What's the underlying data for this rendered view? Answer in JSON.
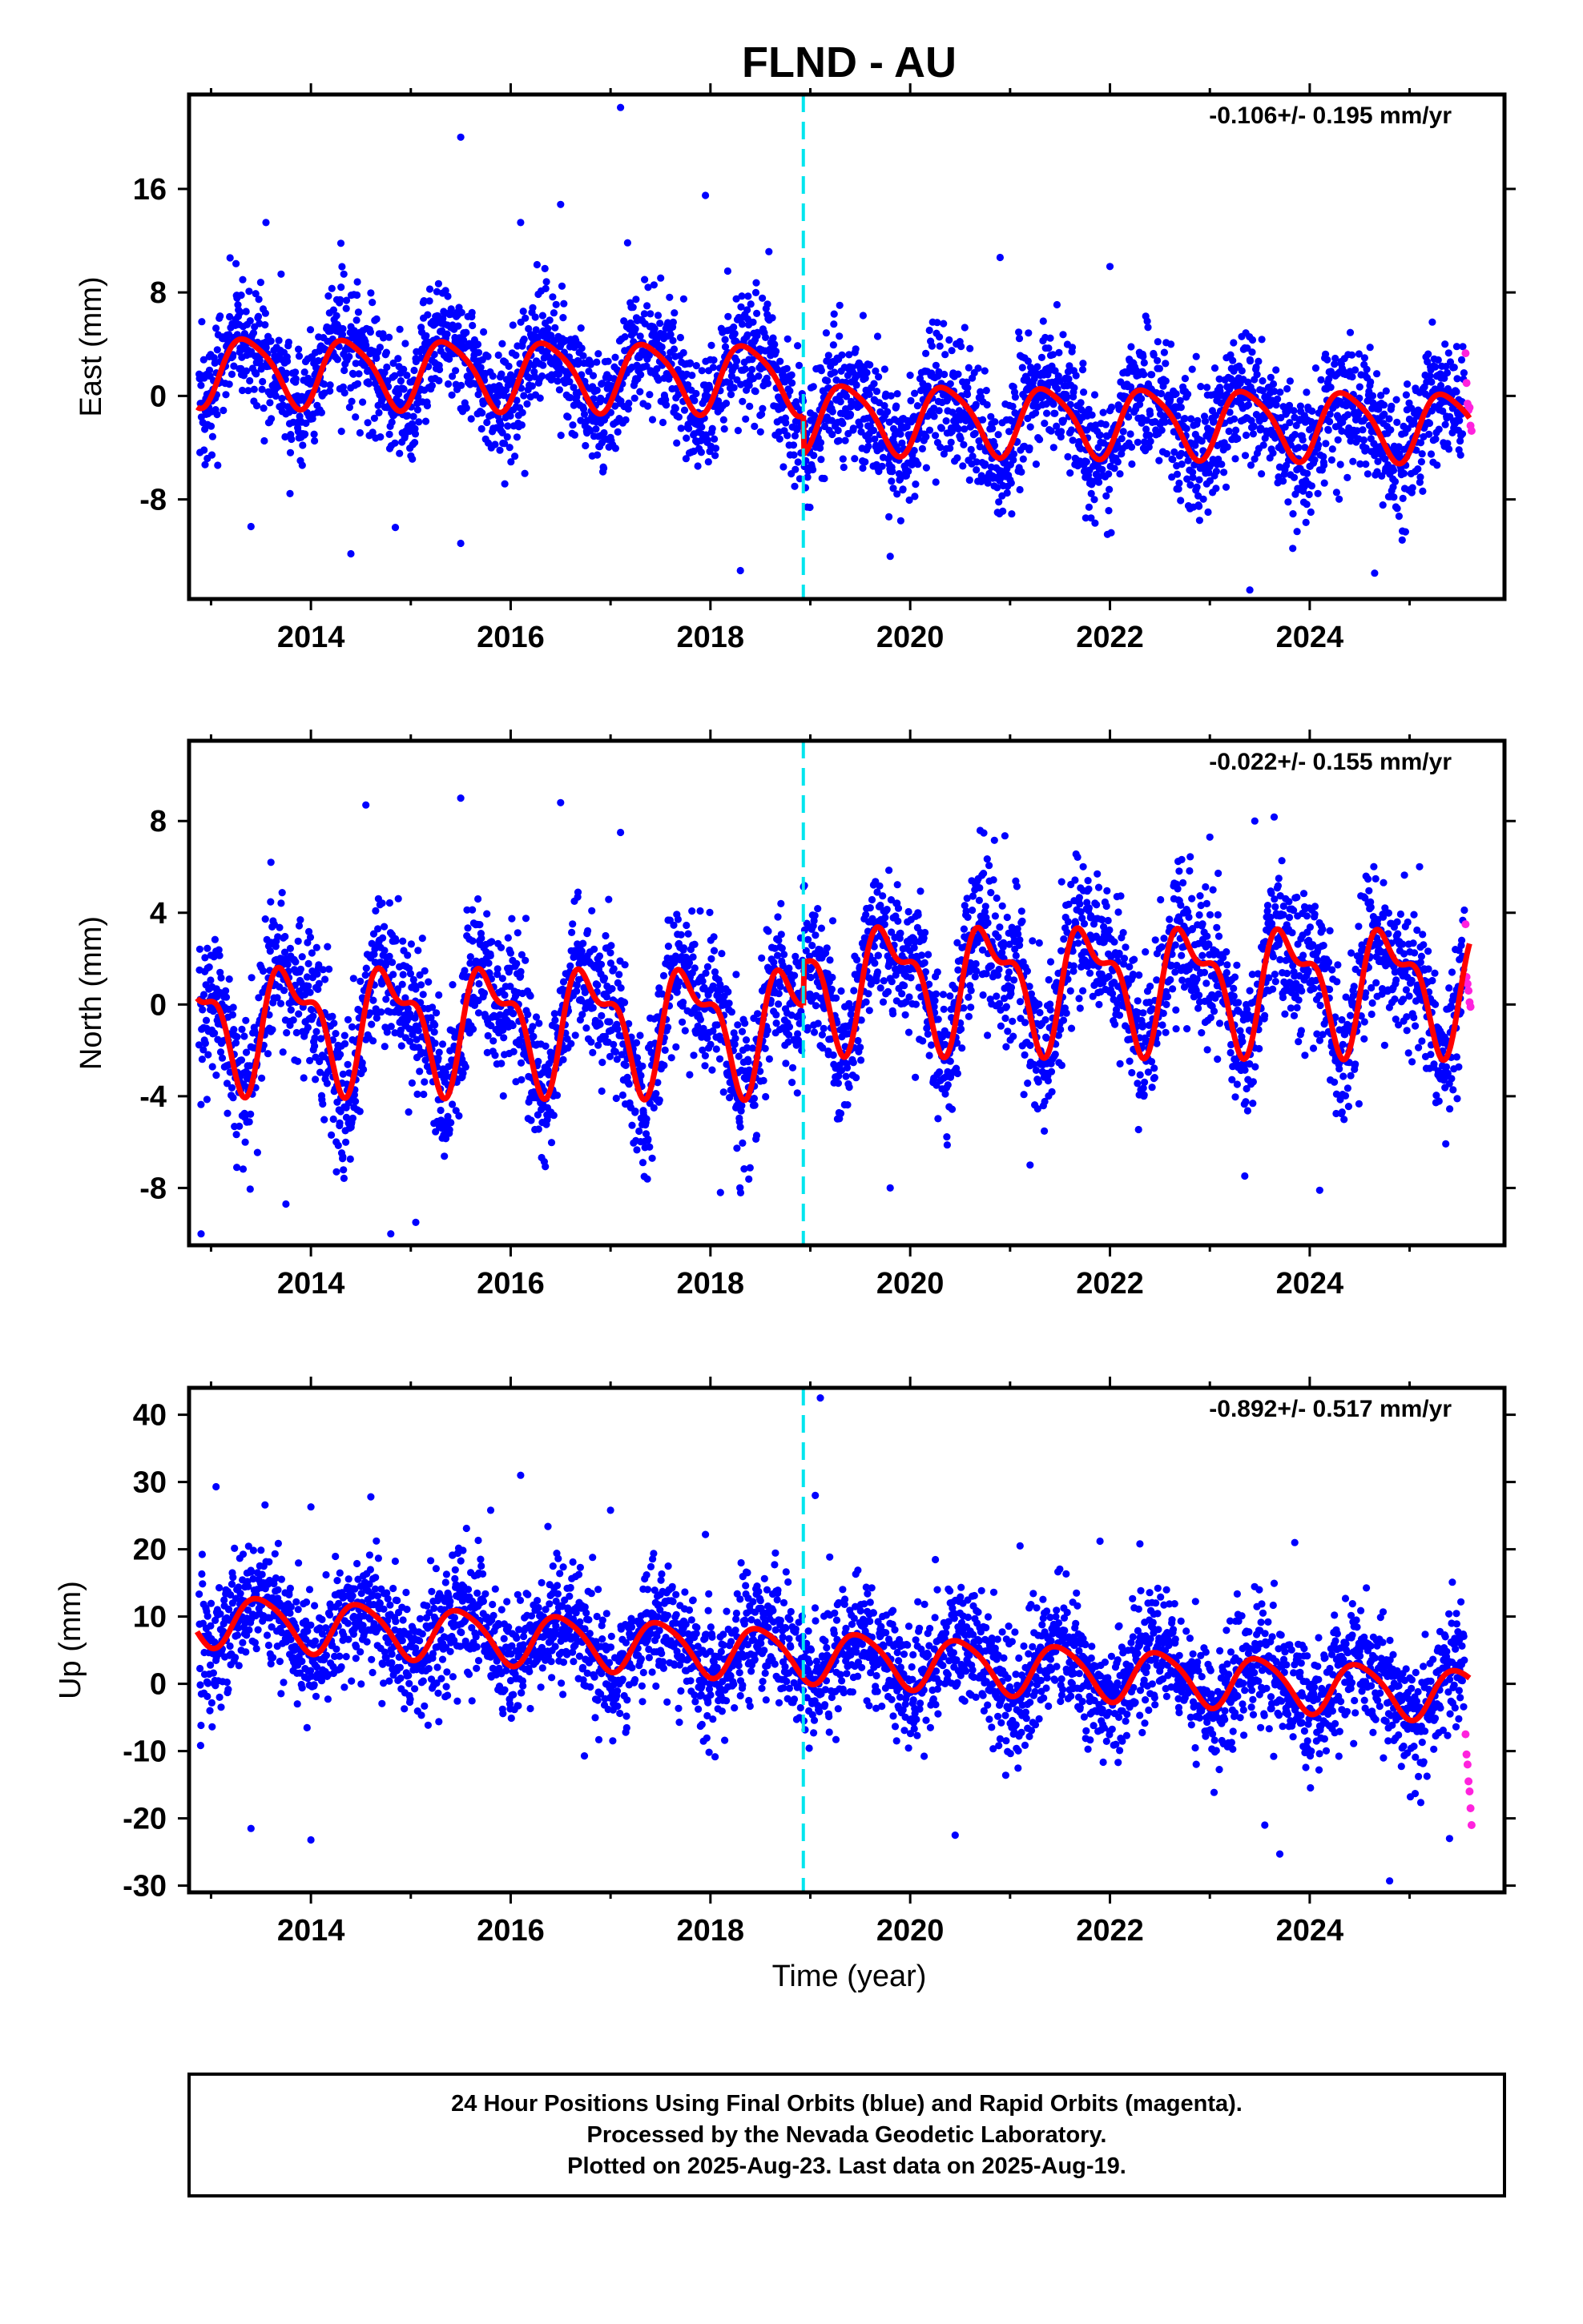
{
  "chart_data": {
    "type": "scatter",
    "title": "FLND - AU",
    "xlabel": "Time (year)",
    "xlim": [
      2012.78,
      2025.95
    ],
    "xticks": [
      2014,
      2016,
      2018,
      2020,
      2022,
      2024
    ],
    "xtick_labels": [
      "2014",
      "2016",
      "2018",
      "2020",
      "2022",
      "2024"
    ],
    "equipment_change_year": 2018.93,
    "colors": {
      "final_orbits": "#0000ff",
      "rapid_orbits": "#ff22dd",
      "model_fit": "#ff0000",
      "equipment_change": "#00e5ee"
    },
    "panels": [
      {
        "component": "East",
        "ylabel": "East (mm)",
        "ylim": [
          -15.7,
          23.3
        ],
        "yticks": [
          16,
          8,
          0,
          -8
        ],
        "ytick_labels": [
          "16",
          "8",
          "0",
          "-8"
        ],
        "rate_text": "-0.106+/- 0.195 mm/yr",
        "model": {
          "segments": [
            {
              "from": 2012.78,
              "to": 2018.93,
              "offset": 1.4,
              "trend": -0.106,
              "annual_amp": 2.6,
              "annual_phase": 0.12,
              "semiannual_amp": 0.5
            },
            {
              "from": 2018.93,
              "to": 2025.95,
              "offset": -1.6,
              "trend": -0.106,
              "annual_amp": 2.6,
              "annual_phase": 0.12,
              "semiannual_amp": 0.5
            }
          ]
        },
        "scatter_sigma": 2.4,
        "outliers": [
          {
            "x": 2017.1,
            "y": 22.3
          },
          {
            "x": 2015.5,
            "y": 20.0
          },
          {
            "x": 2017.95,
            "y": 15.5
          },
          {
            "x": 2016.5,
            "y": 14.8
          },
          {
            "x": 2013.55,
            "y": 13.4
          },
          {
            "x": 2016.1,
            "y": 13.4
          },
          {
            "x": 2014.3,
            "y": 11.8
          },
          {
            "x": 2020.9,
            "y": 10.7
          },
          {
            "x": 2022.0,
            "y": 10.0
          },
          {
            "x": 2023.4,
            "y": -15.0
          },
          {
            "x": 2018.3,
            "y": -13.5
          },
          {
            "x": 2024.65,
            "y": -13.7
          },
          {
            "x": 2014.4,
            "y": -12.2
          },
          {
            "x": 2019.8,
            "y": -12.4
          },
          {
            "x": 2013.4,
            "y": -10.1
          },
          {
            "x": 2015.5,
            "y": -11.4
          }
        ],
        "rapid_points": [
          {
            "x": 2025.56,
            "y": 3.3
          },
          {
            "x": 2025.57,
            "y": 1.0
          },
          {
            "x": 2025.58,
            "y": -0.6
          },
          {
            "x": 2025.59,
            "y": -1.1
          },
          {
            "x": 2025.6,
            "y": -0.9
          },
          {
            "x": 2025.61,
            "y": -2.3
          },
          {
            "x": 2025.62,
            "y": -2.7
          }
        ]
      },
      {
        "component": "North",
        "ylabel": "North (mm)",
        "ylim": [
          -10.5,
          11.5
        ],
        "yticks": [
          8,
          4,
          0,
          -4,
          -8
        ],
        "ytick_labels": [
          "8",
          "4",
          "0",
          "-4",
          "-8"
        ],
        "rate_text": "-0.022+/- 0.155 mm/yr",
        "model": {
          "segments": [
            {
              "from": 2012.78,
              "to": 2018.93,
              "offset": -0.9,
              "trend": -0.022,
              "annual_amp": 2.3,
              "annual_phase": 0.55,
              "semiannual_amp": 1.1
            },
            {
              "from": 2018.93,
              "to": 2025.95,
              "offset": 1.0,
              "trend": -0.022,
              "annual_amp": 2.3,
              "annual_phase": 0.55,
              "semiannual_amp": 1.1
            }
          ]
        },
        "scatter_sigma": 1.6,
        "outliers": [
          {
            "x": 2015.5,
            "y": 9.0
          },
          {
            "x": 2014.55,
            "y": 8.7
          },
          {
            "x": 2016.5,
            "y": 8.8
          },
          {
            "x": 2017.1,
            "y": 7.5
          },
          {
            "x": 2023.45,
            "y": 8.0
          },
          {
            "x": 2013.6,
            "y": 6.2
          },
          {
            "x": 2012.9,
            "y": -10.0
          },
          {
            "x": 2014.8,
            "y": -10.0
          },
          {
            "x": 2015.05,
            "y": -9.5
          },
          {
            "x": 2013.75,
            "y": -8.7
          },
          {
            "x": 2024.1,
            "y": -8.1
          },
          {
            "x": 2019.8,
            "y": -8.0
          },
          {
            "x": 2018.1,
            "y": -8.2
          },
          {
            "x": 2021.2,
            "y": -7.0
          },
          {
            "x": 2023.0,
            "y": 7.3
          }
        ],
        "rapid_points": [
          {
            "x": 2025.56,
            "y": 3.5
          },
          {
            "x": 2025.57,
            "y": 1.2
          },
          {
            "x": 2025.58,
            "y": 0.9
          },
          {
            "x": 2025.59,
            "y": 0.6
          },
          {
            "x": 2025.6,
            "y": 0.1
          },
          {
            "x": 2025.61,
            "y": -0.1
          }
        ]
      },
      {
        "component": "Up",
        "ylabel": "Up (mm)",
        "ylim": [
          -31,
          44
        ],
        "yticks": [
          40,
          30,
          20,
          10,
          0,
          -10,
          -20,
          -30
        ],
        "ytick_labels": [
          "40",
          "30",
          "20",
          "10",
          "0",
          "-10",
          "-20",
          "-30"
        ],
        "rate_text": "-0.892+/- 0.517 mm/yr",
        "model": {
          "segments": [
            {
              "from": 2012.78,
              "to": 2018.93,
              "offset": 4.2,
              "trend": -0.892,
              "annual_amp": 3.8,
              "annual_phase": 0.25,
              "semiannual_amp": 0.6
            },
            {
              "from": 2018.93,
              "to": 2025.95,
              "offset": 4.2,
              "trend": -0.892,
              "annual_amp": 3.8,
              "annual_phase": 0.25,
              "semiannual_amp": 0.6
            }
          ]
        },
        "scatter_sigma": 4.6,
        "outliers": [
          {
            "x": 2019.1,
            "y": 42.5
          },
          {
            "x": 2016.1,
            "y": 31.0
          },
          {
            "x": 2013.05,
            "y": 29.3
          },
          {
            "x": 2019.05,
            "y": 28.0
          },
          {
            "x": 2014.6,
            "y": 27.8
          },
          {
            "x": 2015.8,
            "y": 25.8
          },
          {
            "x": 2014.0,
            "y": 26.3
          },
          {
            "x": 2017.0,
            "y": 25.8
          },
          {
            "x": 2017.95,
            "y": 22.2
          },
          {
            "x": 2023.85,
            "y": 21.0
          },
          {
            "x": 2021.9,
            "y": 21.2
          },
          {
            "x": 2022.3,
            "y": 20.8
          },
          {
            "x": 2021.1,
            "y": 20.5
          },
          {
            "x": 2024.8,
            "y": -29.3
          },
          {
            "x": 2023.7,
            "y": -25.3
          },
          {
            "x": 2014.0,
            "y": -23.2
          },
          {
            "x": 2013.4,
            "y": -21.5
          },
          {
            "x": 2020.45,
            "y": -22.5
          },
          {
            "x": 2025.4,
            "y": -23.0
          },
          {
            "x": 2023.55,
            "y": -21.0
          }
        ],
        "rapid_points": [
          {
            "x": 2025.56,
            "y": -7.5
          },
          {
            "x": 2025.57,
            "y": -10.5
          },
          {
            "x": 2025.58,
            "y": -12.0
          },
          {
            "x": 2025.59,
            "y": -14.5
          },
          {
            "x": 2025.6,
            "y": -16.0
          },
          {
            "x": 2025.61,
            "y": -18.5
          },
          {
            "x": 2025.62,
            "y": -21.0
          }
        ]
      }
    ],
    "final_points_per_panel": 3400,
    "random_seed": 20250823
  },
  "footer": {
    "line1": "24 Hour Positions Using Final Orbits (blue) and Rapid Orbits (magenta).",
    "line2": "Processed by the Nevada Geodetic Laboratory.",
    "line3": "Plotted on 2025-Aug-23. Last data on 2025-Aug-19."
  }
}
